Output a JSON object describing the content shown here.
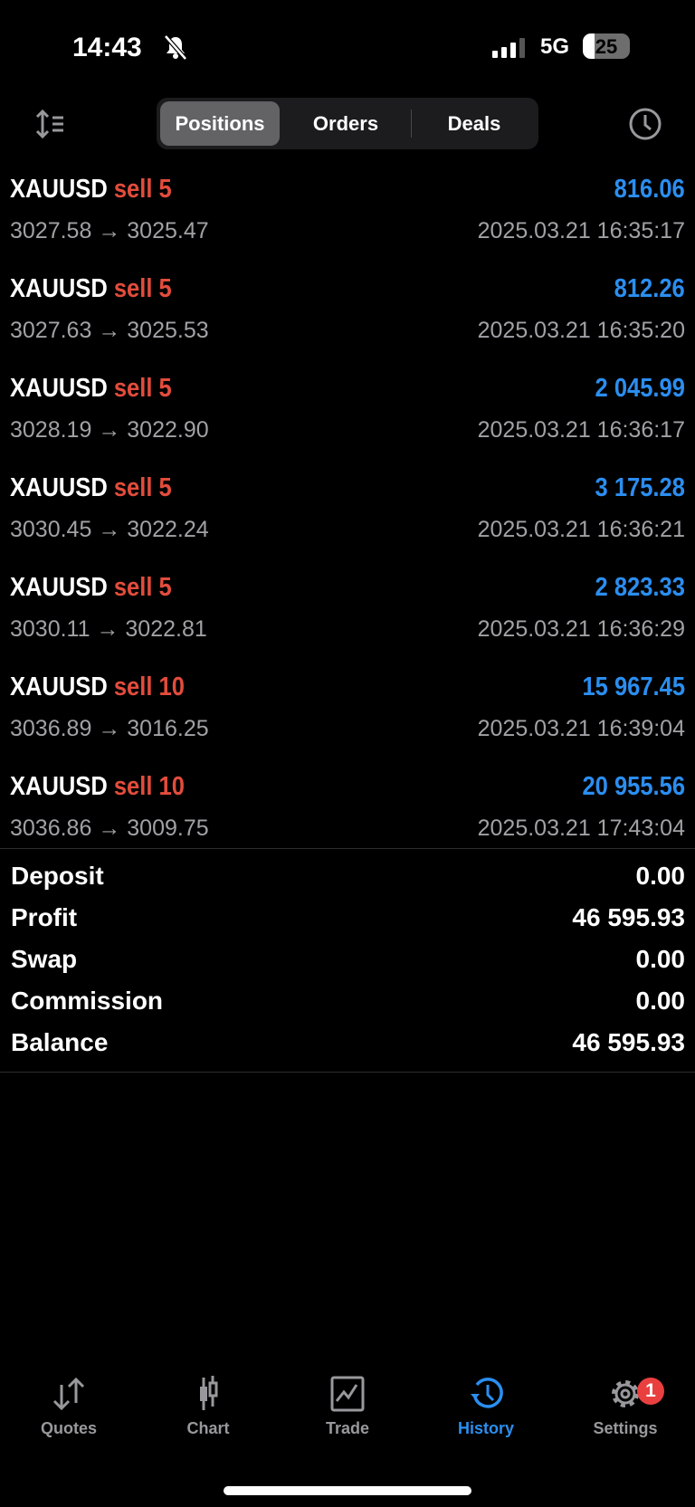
{
  "status_bar": {
    "time": "14:43",
    "network": "5G",
    "battery": "25",
    "battery_level": 0.25
  },
  "toolbar": {
    "segments": [
      "Positions",
      "Orders",
      "Deals"
    ],
    "active": "Positions"
  },
  "positions": [
    {
      "symbol": "XAUUSD",
      "side": "sell 5",
      "profit": "816.06",
      "prices": "3027.58 → 3025.47",
      "time": "2025.03.21 16:35:17"
    },
    {
      "symbol": "XAUUSD",
      "side": "sell 5",
      "profit": "812.26",
      "prices": "3027.63 → 3025.53",
      "time": "2025.03.21 16:35:20"
    },
    {
      "symbol": "XAUUSD",
      "side": "sell 5",
      "profit": "2 045.99",
      "prices": "3028.19 → 3022.90",
      "time": "2025.03.21 16:36:17"
    },
    {
      "symbol": "XAUUSD",
      "side": "sell 5",
      "profit": "3 175.28",
      "prices": "3030.45 → 3022.24",
      "time": "2025.03.21 16:36:21"
    },
    {
      "symbol": "XAUUSD",
      "side": "sell 5",
      "profit": "2 823.33",
      "prices": "3030.11 → 3022.81",
      "time": "2025.03.21 16:36:29"
    },
    {
      "symbol": "XAUUSD",
      "side": "sell 10",
      "profit": "15 967.45",
      "prices": "3036.89 → 3016.25",
      "time": "2025.03.21 16:39:04"
    },
    {
      "symbol": "XAUUSD",
      "side": "sell 10",
      "profit": "20 955.56",
      "prices": "3036.86 → 3009.75",
      "time": "2025.03.21 17:43:04"
    }
  ],
  "summary": [
    {
      "label": "Deposit",
      "value": "0.00"
    },
    {
      "label": "Profit",
      "value": "46 595.93"
    },
    {
      "label": "Swap",
      "value": "0.00"
    },
    {
      "label": "Commission",
      "value": "0.00"
    },
    {
      "label": "Balance",
      "value": "46 595.93"
    }
  ],
  "tabbar": {
    "items": [
      "Quotes",
      "Chart",
      "Trade",
      "History",
      "Settings"
    ],
    "active": "History",
    "settings_badge": "1"
  },
  "colors": {
    "accent": "#2b8ef0",
    "sell": "#e34c3c",
    "muted": "#a1a1a6"
  }
}
